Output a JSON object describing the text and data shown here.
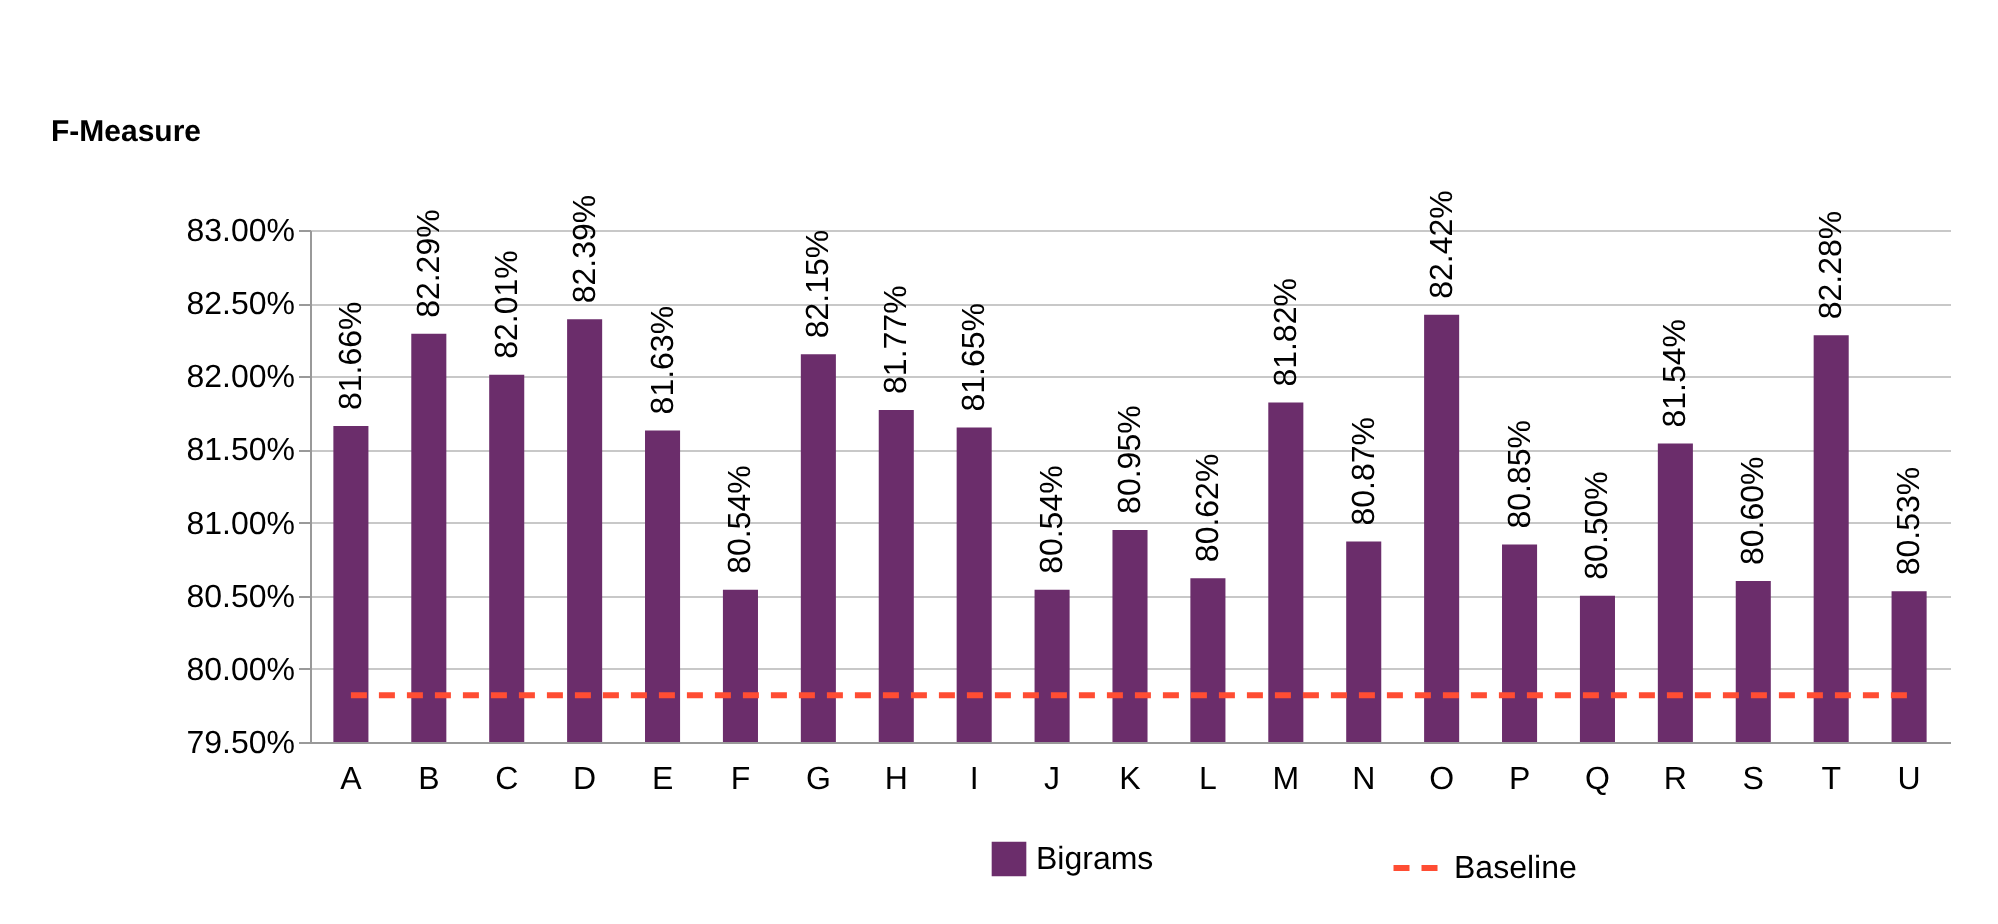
{
  "chart_data": {
    "type": "bar",
    "ylabel": "F-Measure",
    "categories": [
      "A",
      "B",
      "C",
      "D",
      "E",
      "F",
      "G",
      "H",
      "I",
      "J",
      "K",
      "L",
      "M",
      "N",
      "O",
      "P",
      "Q",
      "R",
      "S",
      "T",
      "U"
    ],
    "series": [
      {
        "name": "Bigrams",
        "color": "#6b2d6b",
        "values": [
          81.66,
          82.29,
          82.01,
          82.39,
          81.63,
          80.54,
          82.15,
          81.77,
          81.65,
          80.54,
          80.95,
          80.62,
          81.82,
          80.87,
          82.42,
          80.85,
          80.5,
          81.54,
          80.6,
          82.28,
          80.53
        ],
        "value_labels": [
          "81.66%",
          "82.29%",
          "82.01%",
          "82.39%",
          "81.63%",
          "80.54%",
          "82.15%",
          "81.77%",
          "81.65%",
          "80.54%",
          "80.95%",
          "80.62%",
          "81.82%",
          "80.87%",
          "82.42%",
          "80.85%",
          "80.50%",
          "81.54%",
          "80.60%",
          "82.28%",
          "80.53%"
        ]
      },
      {
        "name": "Baseline",
        "type": "line",
        "line_style": "dashed",
        "color": "#ff4d33",
        "values": [
          79.82,
          79.82,
          79.82,
          79.82,
          79.82,
          79.82,
          79.82,
          79.82,
          79.82,
          79.82,
          79.82,
          79.82,
          79.82,
          79.82,
          79.82,
          79.82,
          79.82,
          79.82,
          79.82,
          79.82,
          79.82
        ]
      }
    ],
    "ylim": [
      79.5,
      83.0
    ],
    "yticks": [
      {
        "value": 79.5,
        "label": "79.50%"
      },
      {
        "value": 80.0,
        "label": "80.00%"
      },
      {
        "value": 80.5,
        "label": "80.50%"
      },
      {
        "value": 81.0,
        "label": "81.00%"
      },
      {
        "value": 81.5,
        "label": "81.50%"
      },
      {
        "value": 82.0,
        "label": "82.00%"
      },
      {
        "value": 82.5,
        "label": "82.50%"
      },
      {
        "value": 83.0,
        "label": "83.00%"
      }
    ],
    "grid": "y",
    "legend": "bottom"
  }
}
